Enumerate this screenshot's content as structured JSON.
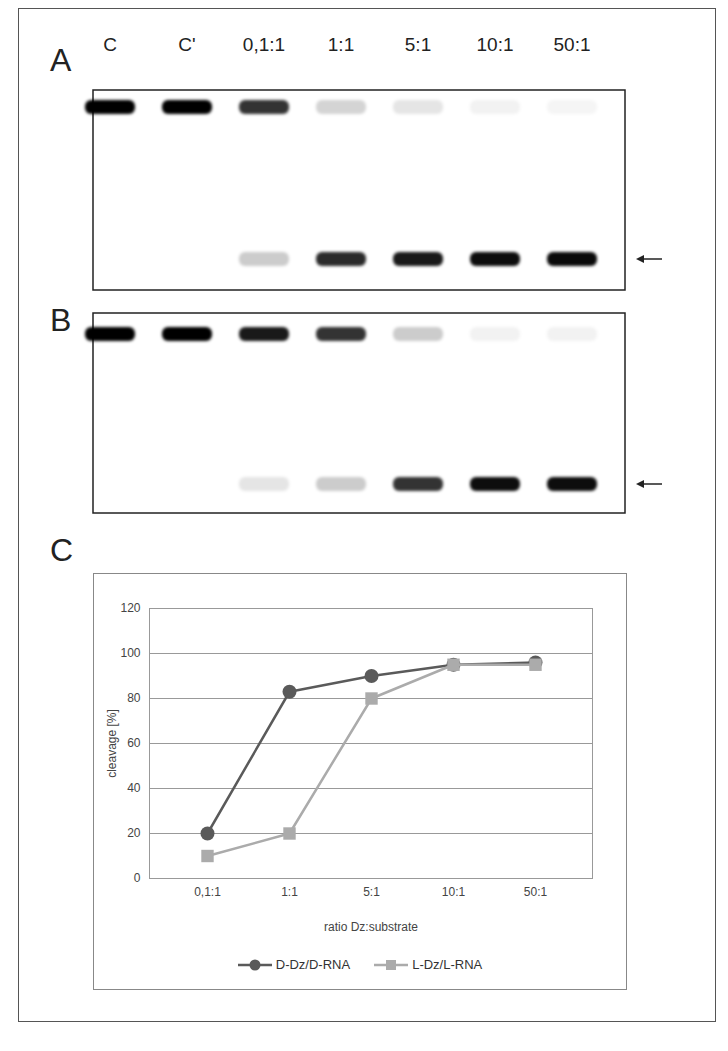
{
  "figure": {
    "panels": [
      {
        "label": "A",
        "lanes": [
          "C",
          "C'",
          "0,1:1",
          "1:1",
          "5:1",
          "10:1",
          "50:1"
        ]
      },
      {
        "label": "B"
      },
      {
        "label": "C"
      }
    ]
  },
  "chart_data": {
    "type": "line",
    "x_label": "ratio Dz:substrate",
    "y_label": "cleavage [%]",
    "categories": [
      "0,1:1",
      "1:1",
      "5:1",
      "10:1",
      "50:1"
    ],
    "series": [
      {
        "name": "D-Dz/D-RNA",
        "color": "#5a5a5a",
        "marker": "circle",
        "values": [
          20,
          83,
          90,
          95,
          96
        ]
      },
      {
        "name": "L-Dz/L-RNA",
        "color": "#ababab",
        "marker": "square",
        "values": [
          10,
          20,
          80,
          95,
          95
        ]
      }
    ],
    "ylim": [
      0,
      120
    ],
    "yticks": [
      0,
      20,
      40,
      60,
      80,
      100,
      120
    ],
    "grid": true,
    "legend": "bottom"
  }
}
